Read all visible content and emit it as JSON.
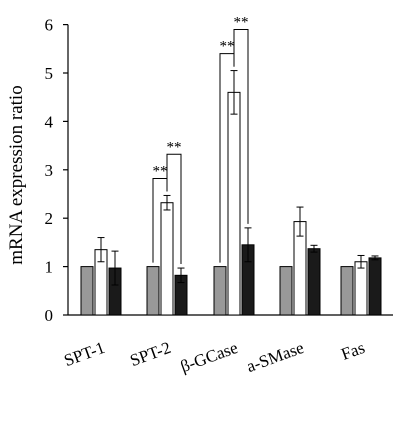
{
  "chart_data": {
    "type": "bar",
    "ylabel": "mRNA expression ratio",
    "xlabel": "",
    "title": "",
    "ylim": [
      0,
      6
    ],
    "yticks": [
      0,
      1,
      2,
      3,
      4,
      5,
      6
    ],
    "categories": [
      "SPT-1",
      "SPT-2",
      "β-GCase",
      "a-SMase",
      "Fas"
    ],
    "series": [
      {
        "fill": "#999999",
        "values": [
          1.0,
          1.0,
          1.0,
          1.0,
          1.0
        ],
        "errors": [
          0.0,
          0.0,
          0.0,
          0.0,
          0.0
        ]
      },
      {
        "fill": "#ffffff",
        "values": [
          1.35,
          2.32,
          4.6,
          1.93,
          1.1
        ],
        "errors": [
          0.25,
          0.15,
          0.45,
          0.3,
          0.13
        ]
      },
      {
        "fill": "#1a1a1a",
        "values": [
          0.97,
          0.82,
          1.45,
          1.37,
          1.18
        ],
        "errors": [
          0.35,
          0.15,
          0.35,
          0.07,
          0.04
        ]
      }
    ],
    "significance": [
      {
        "category": "SPT-2",
        "from_series": 1,
        "to_series": 2,
        "label": "**",
        "level": 1
      },
      {
        "category": "SPT-2",
        "from_series": 0,
        "to_series": 1,
        "label": "**",
        "level": 0
      },
      {
        "category": "β-GCase",
        "from_series": 0,
        "to_series": 1,
        "label": "**",
        "level": 0
      },
      {
        "category": "β-GCase",
        "from_series": 1,
        "to_series": 2,
        "label": "**",
        "level": 1
      }
    ],
    "grid": false,
    "legend": "none"
  }
}
